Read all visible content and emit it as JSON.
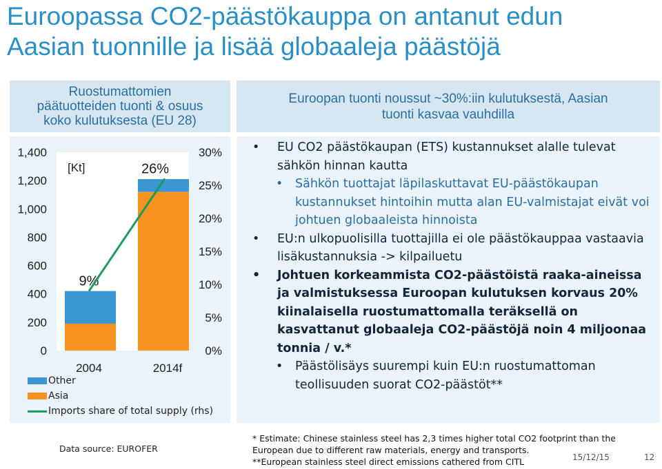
{
  "title": {
    "line1": "Euroopassa CO2-päästökauppa on antanut edun",
    "line2": "Aasian tuonnille ja lisää globaaleja päästöjä"
  },
  "left_header": {
    "line1": "Ruostumattomien",
    "line2": "päätuotteiden tuonti  & osuus",
    "line3": "koko kulutuksesta (EU 28)"
  },
  "right_header": {
    "line1": "Euroopan tuonti noussut ~30%:iin  kulutuksestä, Aasian",
    "line2": "tuonti kasvaa vauhdilla"
  },
  "chart_data": {
    "type": "bar",
    "unit_label": "[Kt]",
    "categories": [
      "2004",
      "2014f"
    ],
    "series": [
      {
        "name": "Asia",
        "values": [
          190,
          1120
        ],
        "color": "#f7931e"
      },
      {
        "name": "Other",
        "values": [
          230,
          90
        ],
        "color": "#3a97d4"
      }
    ],
    "line_series": {
      "name": "Imports share of total supply (rhs)",
      "values": [
        9,
        26
      ],
      "color": "#1d9b5e"
    },
    "bar_labels": [
      "9%",
      "26%"
    ],
    "ylim": [
      0,
      1400
    ],
    "y_ticks": [
      "0",
      "200",
      "400",
      "600",
      "800",
      "1,000",
      "1,200",
      "1,400"
    ],
    "y2lim": [
      0,
      30
    ],
    "y2_ticks": [
      "0%",
      "5%",
      "10%",
      "15%",
      "20%",
      "25%",
      "30%"
    ]
  },
  "legend": {
    "other": "Other",
    "asia": "Asia",
    "share": "Imports share of total supply (rhs)"
  },
  "bullets": {
    "b1": "EU CO2 päästökaupan (ETS) kustannukset alalle tulevat sähkön hinnan kautta",
    "b1_sub": "Sähkön tuottajat läpilaskuttavat EU-päästökaupan kustannukset hintoihin mutta alan EU-valmistajat eivät voi johtuen globaaleista hinnoista",
    "b2": "EU:n ulkopuolisilla tuottajilla ei ole päästökauppaa vastaavia lisäkustannuksia -> kilpailuetu",
    "b3": "Johtuen korkeammista CO2-päästöistä raaka-aineissa ja valmistuksessa Euroopan kulutuksen korvaus 20% kiinalaisella ruostumattomalla teräksellä on kasvattanut globaaleja CO2-päästöjä noin 4 miljoonaa tonnia / v.*",
    "b3_sub": "Päästölisäys suurempi kuin EU:n ruostumattoman teollisuuden suorat CO2-päästöt**",
    "bullet_char": "•"
  },
  "footer": {
    "source": "Data source: EUROFER",
    "note1": "* Estimate: Chinese stainless steel has 2,3 times higher total CO2 footprint than the",
    "note2": "European due to different raw materials, energy and transports.",
    "note3": "**European stainless steel direct emissions cathered from CITL",
    "date": "15/12/15",
    "page": "12"
  }
}
